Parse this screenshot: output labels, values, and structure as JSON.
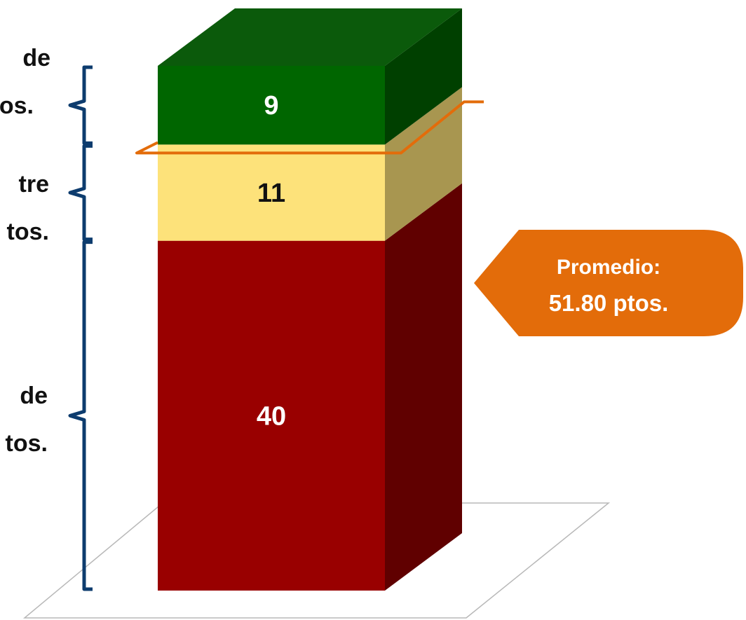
{
  "chart_data": {
    "type": "bar",
    "stacked": true,
    "three_d": true,
    "categories": [
      ""
    ],
    "series": [
      {
        "values": [
          40
        ],
        "color": "#990000",
        "side_color": "#600000",
        "label_color": "#ffffff"
      },
      {
        "values": [
          11
        ],
        "color": "#fde27a",
        "side_color": "#a89650",
        "label_color": "#111111"
      },
      {
        "values": [
          9
        ],
        "color": "#006600",
        "side_color": "#004000",
        "top_color": "#0b5a0b",
        "label_color": "#ffffff"
      }
    ],
    "ylim": [
      0,
      60
    ],
    "grid": false,
    "legend": "none",
    "reference": {
      "value": 51.8,
      "line_color": "#e36c0a",
      "callout_line1": "Promedio:",
      "callout_line2": "51.80 ptos."
    },
    "side_labels": [
      {
        "line1": "de",
        "line2": "os."
      },
      {
        "line1": "tre",
        "line2": "tos."
      },
      {
        "line1": "de",
        "line2": "tos."
      }
    ],
    "bracket_color": "#0d3c6e",
    "floor_color": "#b8b8b8"
  }
}
